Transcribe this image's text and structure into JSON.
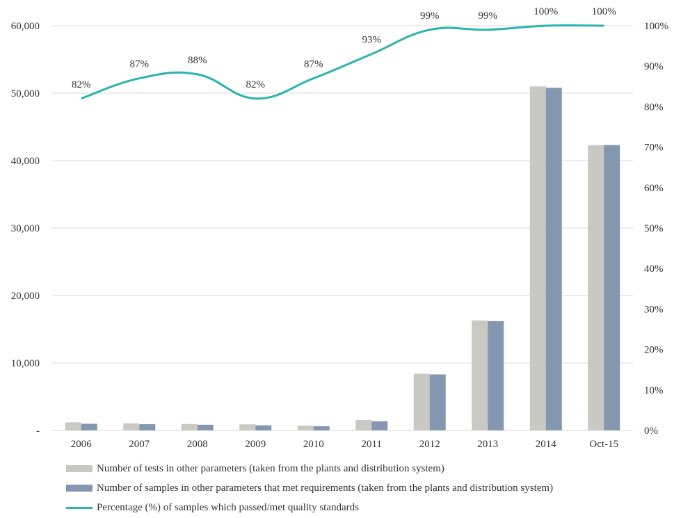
{
  "chart_data": {
    "type": "bar",
    "categories": [
      "2006",
      "2007",
      "2008",
      "2009",
      "2010",
      "2011",
      "2012",
      "2013",
      "2014",
      "Oct-15"
    ],
    "series": [
      {
        "name": "Number of tests in other parameters (taken from the plants and distribution system)",
        "type": "bar",
        "axis": "left",
        "color": "#c9c8c3",
        "values": [
          1200,
          1050,
          950,
          900,
          700,
          1550,
          8400,
          16300,
          51000,
          42300
        ]
      },
      {
        "name": "Number of samples in other parameters that met requirements (taken from the plants and distribution system)",
        "type": "bar",
        "axis": "left",
        "color": "#8497b0",
        "values": [
          980,
          920,
          840,
          750,
          610,
          1350,
          8300,
          16200,
          50800,
          42300
        ]
      },
      {
        "name": "Percentage (%) of samples which passed/met quality standards",
        "type": "line",
        "axis": "right",
        "color": "#2ab3ac",
        "values": [
          82,
          87,
          88,
          82,
          87,
          93,
          99,
          99,
          100,
          100
        ],
        "labels": [
          "82%",
          "87%",
          "88%",
          "82%",
          "87%",
          "93%",
          "99%",
          "99%",
          "100%",
          "100%"
        ]
      }
    ],
    "y_left": {
      "range": [
        0,
        60000
      ],
      "ticks": [
        0,
        10000,
        20000,
        30000,
        40000,
        50000,
        60000
      ],
      "tick_labels": [
        "-",
        "10,000",
        "20,000",
        "30,000",
        "40,000",
        "50,000",
        "60,000"
      ]
    },
    "y_right": {
      "range": [
        0,
        100
      ],
      "ticks": [
        0,
        10,
        20,
        30,
        40,
        50,
        60,
        70,
        80,
        90,
        100
      ],
      "tick_labels": [
        "0%",
        "10%",
        "20%",
        "30%",
        "40%",
        "50%",
        "60%",
        "70%",
        "80%",
        "90%",
        "100%"
      ]
    },
    "grid": true,
    "legend_position": "bottom-left",
    "gridline_color": "#d9d9d9"
  }
}
